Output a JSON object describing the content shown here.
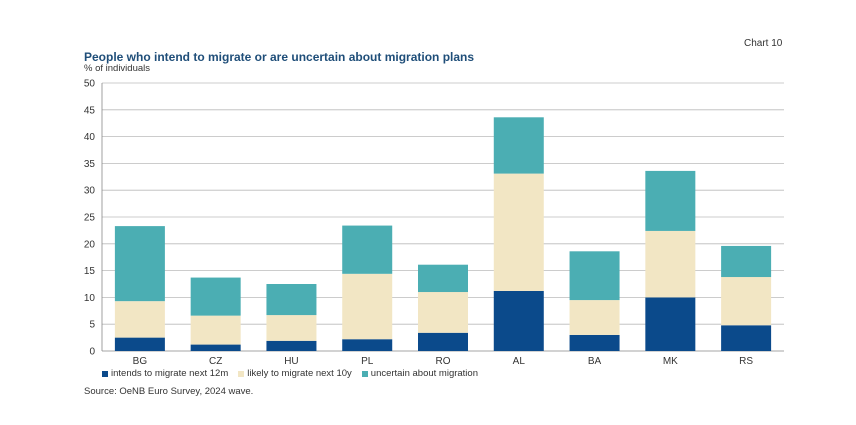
{
  "header": {
    "chart_label": "Chart 10",
    "title": "People who intend to migrate or are uncertain about migration plans",
    "unit": "% of individuals"
  },
  "footer": {
    "source": "Source: OeNB Euro Survey, 2024 wave."
  },
  "colors": {
    "intend": "#0b4a8b",
    "likely": "#f2e6c4",
    "uncertain": "#4baeb3",
    "grid": "#bbbbbb"
  },
  "chart_data": {
    "type": "bar",
    "stacked": true,
    "title": "People who intend to migrate or are uncertain about migration plans",
    "ylabel": "% of individuals",
    "ylim": [
      0,
      50
    ],
    "yticks": [
      0,
      5,
      10,
      15,
      20,
      25,
      30,
      35,
      40,
      45,
      50
    ],
    "grid": true,
    "legend_position": "bottom",
    "categories": [
      "BG",
      "CZ",
      "HU",
      "PL",
      "RO",
      "AL",
      "BA",
      "MK",
      "RS"
    ],
    "series": [
      {
        "name": "intends to migrate next 12m",
        "color": "#0b4a8b",
        "values": [
          2.5,
          1.2,
          1.9,
          2.2,
          3.4,
          11.2,
          3.0,
          10.0,
          4.8
        ]
      },
      {
        "name": "likely to migrate next 10y",
        "color": "#f2e6c4",
        "values": [
          6.8,
          5.4,
          4.8,
          12.2,
          7.6,
          21.9,
          6.5,
          12.4,
          9.0
        ]
      },
      {
        "name": "uncertain about migration",
        "color": "#4baeb3",
        "values": [
          14.0,
          7.1,
          5.8,
          9.0,
          5.1,
          10.5,
          9.1,
          11.2,
          5.8
        ]
      }
    ]
  }
}
